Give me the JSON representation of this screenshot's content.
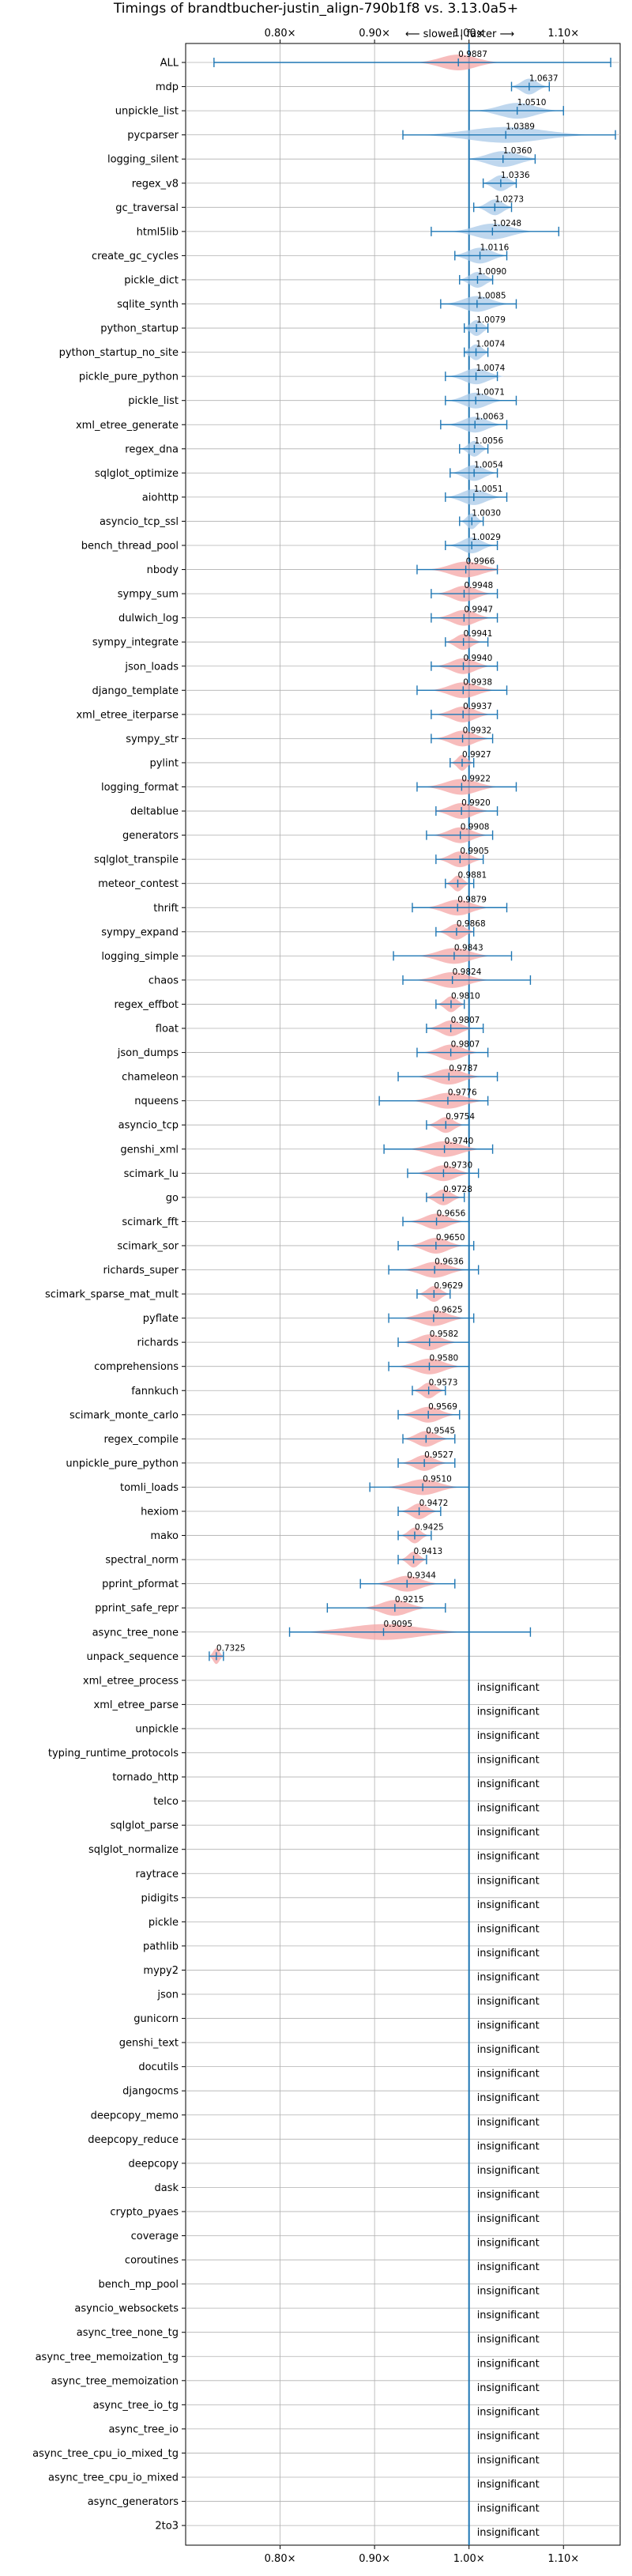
{
  "chart_data": {
    "type": "violin",
    "title": "Timings of brandtbucher-justin_align-790b1f8 vs. 3.13.0a5+",
    "direction_note": "⟵ slower | faster ⟶",
    "xlim": [
      0.7,
      1.16
    ],
    "xticks": [
      0.8,
      0.9,
      1.0,
      1.1
    ],
    "xtick_labels": [
      "0.80×",
      "0.90×",
      "1.00×",
      "1.10×"
    ],
    "reference_line": 1.0,
    "grid": true,
    "colors": {
      "faster": "#a9c9e8",
      "slower": "#f4a5a5",
      "line": "#1f77b4",
      "grid": "#b0b0b0"
    },
    "insignificant_text": "insignificant",
    "benchmarks": [
      {
        "name": "ALL",
        "mean": 0.9887,
        "label": "0.9887",
        "min": 0.73,
        "max": 1.15,
        "spread": 0.045,
        "sig": true
      },
      {
        "name": "mdp",
        "mean": 1.0637,
        "label": "1.0637",
        "min": 1.045,
        "max": 1.085,
        "spread": 0.02,
        "sig": true
      },
      {
        "name": "unpickle_list",
        "mean": 1.051,
        "label": "1.0510",
        "min": 1.0,
        "max": 1.1,
        "spread": 0.045,
        "sig": true
      },
      {
        "name": "pycparser",
        "mean": 1.0389,
        "label": "1.0389",
        "min": 0.93,
        "max": 1.155,
        "spread": 0.095,
        "sig": true
      },
      {
        "name": "logging_silent",
        "mean": 1.036,
        "label": "1.0360",
        "min": 1.0,
        "max": 1.07,
        "spread": 0.04,
        "sig": true
      },
      {
        "name": "regex_v8",
        "mean": 1.0336,
        "label": "1.0336",
        "min": 1.015,
        "max": 1.05,
        "spread": 0.02,
        "sig": true
      },
      {
        "name": "gc_traversal",
        "mean": 1.0273,
        "label": "1.0273",
        "min": 1.005,
        "max": 1.045,
        "spread": 0.02,
        "sig": true
      },
      {
        "name": "html5lib",
        "mean": 1.0248,
        "label": "1.0248",
        "min": 0.96,
        "max": 1.095,
        "spread": 0.045,
        "sig": true
      },
      {
        "name": "create_gc_cycles",
        "mean": 1.0116,
        "label": "1.0116",
        "min": 0.985,
        "max": 1.04,
        "spread": 0.03,
        "sig": true
      },
      {
        "name": "pickle_dict",
        "mean": 1.009,
        "label": "1.0090",
        "min": 0.99,
        "max": 1.025,
        "spread": 0.02,
        "sig": true
      },
      {
        "name": "sqlite_synth",
        "mean": 1.0085,
        "label": "1.0085",
        "min": 0.97,
        "max": 1.05,
        "spread": 0.035,
        "sig": true
      },
      {
        "name": "python_startup",
        "mean": 1.0079,
        "label": "1.0079",
        "min": 0.995,
        "max": 1.02,
        "spread": 0.015,
        "sig": true
      },
      {
        "name": "python_startup_no_site",
        "mean": 1.0074,
        "label": "1.0074",
        "min": 0.995,
        "max": 1.02,
        "spread": 0.015,
        "sig": true
      },
      {
        "name": "pickle_pure_python",
        "mean": 1.0074,
        "label": "1.0074",
        "min": 0.975,
        "max": 1.03,
        "spread": 0.03,
        "sig": true
      },
      {
        "name": "pickle_list",
        "mean": 1.0071,
        "label": "1.0071",
        "min": 0.975,
        "max": 1.05,
        "spread": 0.03,
        "sig": true
      },
      {
        "name": "xml_etree_generate",
        "mean": 1.0063,
        "label": "1.0063",
        "min": 0.97,
        "max": 1.04,
        "spread": 0.03,
        "sig": true
      },
      {
        "name": "regex_dna",
        "mean": 1.0056,
        "label": "1.0056",
        "min": 0.99,
        "max": 1.02,
        "spread": 0.015,
        "sig": true
      },
      {
        "name": "sqlglot_optimize",
        "mean": 1.0054,
        "label": "1.0054",
        "min": 0.98,
        "max": 1.03,
        "spread": 0.025,
        "sig": true
      },
      {
        "name": "aiohttp",
        "mean": 1.0051,
        "label": "1.0051",
        "min": 0.975,
        "max": 1.04,
        "spread": 0.03,
        "sig": true
      },
      {
        "name": "asyncio_tcp_ssl",
        "mean": 1.003,
        "label": "1.0030",
        "min": 0.99,
        "max": 1.015,
        "spread": 0.012,
        "sig": true
      },
      {
        "name": "bench_thread_pool",
        "mean": 1.0029,
        "label": "1.0029",
        "min": 0.975,
        "max": 1.03,
        "spread": 0.025,
        "sig": true
      },
      {
        "name": "nbody",
        "mean": 0.9966,
        "label": "0.9966",
        "min": 0.945,
        "max": 1.03,
        "spread": 0.04,
        "sig": true
      },
      {
        "name": "sympy_sum",
        "mean": 0.9948,
        "label": "0.9948",
        "min": 0.96,
        "max": 1.03,
        "spread": 0.03,
        "sig": true
      },
      {
        "name": "dulwich_log",
        "mean": 0.9947,
        "label": "0.9947",
        "min": 0.96,
        "max": 1.03,
        "spread": 0.03,
        "sig": true
      },
      {
        "name": "sympy_integrate",
        "mean": 0.9941,
        "label": "0.9941",
        "min": 0.975,
        "max": 1.02,
        "spread": 0.02,
        "sig": true
      },
      {
        "name": "json_loads",
        "mean": 0.994,
        "label": "0.9940",
        "min": 0.96,
        "max": 1.03,
        "spread": 0.03,
        "sig": true
      },
      {
        "name": "django_template",
        "mean": 0.9938,
        "label": "0.9938",
        "min": 0.945,
        "max": 1.04,
        "spread": 0.035,
        "sig": true
      },
      {
        "name": "xml_etree_iterparse",
        "mean": 0.9937,
        "label": "0.9937",
        "min": 0.96,
        "max": 1.03,
        "spread": 0.03,
        "sig": true
      },
      {
        "name": "sympy_str",
        "mean": 0.9932,
        "label": "0.9932",
        "min": 0.96,
        "max": 1.025,
        "spread": 0.03,
        "sig": true
      },
      {
        "name": "pylint",
        "mean": 0.9927,
        "label": "0.9927",
        "min": 0.98,
        "max": 1.005,
        "spread": 0.012,
        "sig": true
      },
      {
        "name": "logging_format",
        "mean": 0.9922,
        "label": "0.9922",
        "min": 0.945,
        "max": 1.05,
        "spread": 0.04,
        "sig": true
      },
      {
        "name": "deltablue",
        "mean": 0.992,
        "label": "0.9920",
        "min": 0.965,
        "max": 1.03,
        "spread": 0.03,
        "sig": true
      },
      {
        "name": "generators",
        "mean": 0.9908,
        "label": "0.9908",
        "min": 0.955,
        "max": 1.025,
        "spread": 0.03,
        "sig": true
      },
      {
        "name": "sqlglot_transpile",
        "mean": 0.9905,
        "label": "0.9905",
        "min": 0.965,
        "max": 1.015,
        "spread": 0.025,
        "sig": true
      },
      {
        "name": "meteor_contest",
        "mean": 0.9881,
        "label": "0.9881",
        "min": 0.975,
        "max": 1.005,
        "spread": 0.013,
        "sig": true
      },
      {
        "name": "thrift",
        "mean": 0.9879,
        "label": "0.9879",
        "min": 0.94,
        "max": 1.04,
        "spread": 0.035,
        "sig": true
      },
      {
        "name": "sympy_expand",
        "mean": 0.9868,
        "label": "0.9868",
        "min": 0.965,
        "max": 1.005,
        "spread": 0.02,
        "sig": true
      },
      {
        "name": "logging_simple",
        "mean": 0.9843,
        "label": "0.9843",
        "min": 0.92,
        "max": 1.045,
        "spread": 0.04,
        "sig": true
      },
      {
        "name": "chaos",
        "mean": 0.9824,
        "label": "0.9824",
        "min": 0.93,
        "max": 1.065,
        "spread": 0.04,
        "sig": true
      },
      {
        "name": "regex_effbot",
        "mean": 0.981,
        "label": "0.9810",
        "min": 0.965,
        "max": 0.995,
        "spread": 0.015,
        "sig": true
      },
      {
        "name": "float",
        "mean": 0.9807,
        "label": "0.9807",
        "min": 0.955,
        "max": 1.015,
        "spread": 0.025,
        "sig": true
      },
      {
        "name": "json_dumps",
        "mean": 0.9807,
        "label": "0.9807",
        "min": 0.945,
        "max": 1.02,
        "spread": 0.03,
        "sig": true
      },
      {
        "name": "chameleon",
        "mean": 0.9787,
        "label": "0.9787",
        "min": 0.925,
        "max": 1.03,
        "spread": 0.035,
        "sig": true
      },
      {
        "name": "nqueens",
        "mean": 0.9776,
        "label": "0.9776",
        "min": 0.905,
        "max": 1.02,
        "spread": 0.04,
        "sig": true
      },
      {
        "name": "asyncio_tcp",
        "mean": 0.9754,
        "label": "0.9754",
        "min": 0.955,
        "max": 1.0,
        "spread": 0.02,
        "sig": true
      },
      {
        "name": "genshi_xml",
        "mean": 0.974,
        "label": "0.9740",
        "min": 0.91,
        "max": 1.025,
        "spread": 0.04,
        "sig": true
      },
      {
        "name": "scimark_lu",
        "mean": 0.973,
        "label": "0.9730",
        "min": 0.935,
        "max": 1.01,
        "spread": 0.03,
        "sig": true
      },
      {
        "name": "go",
        "mean": 0.9728,
        "label": "0.9728",
        "min": 0.955,
        "max": 0.995,
        "spread": 0.02,
        "sig": true
      },
      {
        "name": "scimark_fft",
        "mean": 0.9656,
        "label": "0.9656",
        "min": 0.93,
        "max": 1.0,
        "spread": 0.03,
        "sig": true
      },
      {
        "name": "scimark_sor",
        "mean": 0.965,
        "label": "0.9650",
        "min": 0.925,
        "max": 1.005,
        "spread": 0.03,
        "sig": true
      },
      {
        "name": "richards_super",
        "mean": 0.9636,
        "label": "0.9636",
        "min": 0.915,
        "max": 1.01,
        "spread": 0.035,
        "sig": true
      },
      {
        "name": "scimark_sparse_mat_mult",
        "mean": 0.9629,
        "label": "0.9629",
        "min": 0.945,
        "max": 0.98,
        "spread": 0.017,
        "sig": true
      },
      {
        "name": "pyflate",
        "mean": 0.9625,
        "label": "0.9625",
        "min": 0.915,
        "max": 1.005,
        "spread": 0.035,
        "sig": true
      },
      {
        "name": "richards",
        "mean": 0.9582,
        "label": "0.9582",
        "min": 0.925,
        "max": 1.0,
        "spread": 0.03,
        "sig": true
      },
      {
        "name": "comprehensions",
        "mean": 0.958,
        "label": "0.9580",
        "min": 0.915,
        "max": 1.0,
        "spread": 0.035,
        "sig": true
      },
      {
        "name": "fannkuch",
        "mean": 0.9573,
        "label": "0.9573",
        "min": 0.94,
        "max": 0.975,
        "spread": 0.017,
        "sig": true
      },
      {
        "name": "scimark_monte_carlo",
        "mean": 0.9569,
        "label": "0.9569",
        "min": 0.925,
        "max": 0.99,
        "spread": 0.03,
        "sig": true
      },
      {
        "name": "regex_compile",
        "mean": 0.9545,
        "label": "0.9545",
        "min": 0.93,
        "max": 0.985,
        "spread": 0.025,
        "sig": true
      },
      {
        "name": "unpickle_pure_python",
        "mean": 0.9527,
        "label": "0.9527",
        "min": 0.925,
        "max": 0.985,
        "spread": 0.025,
        "sig": true
      },
      {
        "name": "tomli_loads",
        "mean": 0.951,
        "label": "0.9510",
        "min": 0.895,
        "max": 1.0,
        "spread": 0.04,
        "sig": true
      },
      {
        "name": "hexiom",
        "mean": 0.9472,
        "label": "0.9472",
        "min": 0.925,
        "max": 0.97,
        "spread": 0.02,
        "sig": true
      },
      {
        "name": "mako",
        "mean": 0.9425,
        "label": "0.9425",
        "min": 0.925,
        "max": 0.96,
        "spread": 0.015,
        "sig": true
      },
      {
        "name": "spectral_norm",
        "mean": 0.9413,
        "label": "0.9413",
        "min": 0.925,
        "max": 0.955,
        "spread": 0.014,
        "sig": true
      },
      {
        "name": "pprint_pformat",
        "mean": 0.9344,
        "label": "0.9344",
        "min": 0.885,
        "max": 0.985,
        "spread": 0.035,
        "sig": true
      },
      {
        "name": "pprint_safe_repr",
        "mean": 0.9215,
        "label": "0.9215",
        "min": 0.85,
        "max": 0.975,
        "spread": 0.035,
        "sig": true
      },
      {
        "name": "async_tree_none",
        "mean": 0.9095,
        "label": "0.9095",
        "min": 0.81,
        "max": 1.065,
        "spread": 0.09,
        "sig": true
      },
      {
        "name": "unpack_sequence",
        "mean": 0.7325,
        "label": "0.7325",
        "min": 0.725,
        "max": 0.74,
        "spread": 0.008,
        "sig": true
      },
      {
        "name": "xml_etree_process",
        "sig": false
      },
      {
        "name": "xml_etree_parse",
        "sig": false
      },
      {
        "name": "unpickle",
        "sig": false
      },
      {
        "name": "typing_runtime_protocols",
        "sig": false
      },
      {
        "name": "tornado_http",
        "sig": false
      },
      {
        "name": "telco",
        "sig": false
      },
      {
        "name": "sqlglot_parse",
        "sig": false
      },
      {
        "name": "sqlglot_normalize",
        "sig": false
      },
      {
        "name": "raytrace",
        "sig": false
      },
      {
        "name": "pidigits",
        "sig": false
      },
      {
        "name": "pickle",
        "sig": false
      },
      {
        "name": "pathlib",
        "sig": false
      },
      {
        "name": "mypy2",
        "sig": false
      },
      {
        "name": "json",
        "sig": false
      },
      {
        "name": "gunicorn",
        "sig": false
      },
      {
        "name": "genshi_text",
        "sig": false
      },
      {
        "name": "docutils",
        "sig": false
      },
      {
        "name": "djangocms",
        "sig": false
      },
      {
        "name": "deepcopy_memo",
        "sig": false
      },
      {
        "name": "deepcopy_reduce",
        "sig": false
      },
      {
        "name": "deepcopy",
        "sig": false
      },
      {
        "name": "dask",
        "sig": false
      },
      {
        "name": "crypto_pyaes",
        "sig": false
      },
      {
        "name": "coverage",
        "sig": false
      },
      {
        "name": "coroutines",
        "sig": false
      },
      {
        "name": "bench_mp_pool",
        "sig": false
      },
      {
        "name": "asyncio_websockets",
        "sig": false
      },
      {
        "name": "async_tree_none_tg",
        "sig": false
      },
      {
        "name": "async_tree_memoization_tg",
        "sig": false
      },
      {
        "name": "async_tree_memoization",
        "sig": false
      },
      {
        "name": "async_tree_io_tg",
        "sig": false
      },
      {
        "name": "async_tree_io",
        "sig": false
      },
      {
        "name": "async_tree_cpu_io_mixed_tg",
        "sig": false
      },
      {
        "name": "async_tree_cpu_io_mixed",
        "sig": false
      },
      {
        "name": "async_generators",
        "sig": false
      },
      {
        "name": "2to3",
        "sig": false
      }
    ]
  }
}
